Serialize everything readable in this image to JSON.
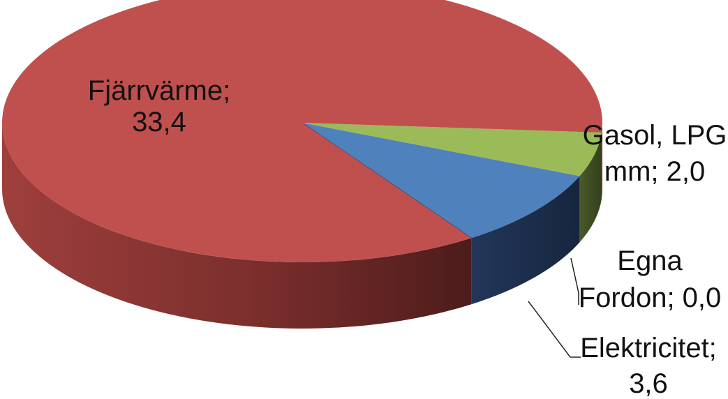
{
  "chart_data": {
    "type": "pie",
    "style": "3d",
    "legend": "none",
    "slices": [
      {
        "label": "Fjärrvärme",
        "value": 33.4,
        "label_lines": [
          "Fjärrvärme;",
          "33,4"
        ],
        "color": "#c0504d"
      },
      {
        "label": "Elektricitet",
        "value": 3.6,
        "label_lines": [
          "Elektricitet;",
          "3,6"
        ],
        "color": "#4f81bd"
      },
      {
        "label": "Egna Fordon",
        "value": 0.0,
        "label_lines": [
          "Egna",
          "Fordon; 0,0"
        ],
        "color": "#1f3864"
      },
      {
        "label": "Gasol, LPG mm",
        "value": 2.0,
        "label_lines": [
          "Gasol, LPG",
          "mm; 2,0"
        ],
        "color": "#9bbb59"
      }
    ]
  }
}
